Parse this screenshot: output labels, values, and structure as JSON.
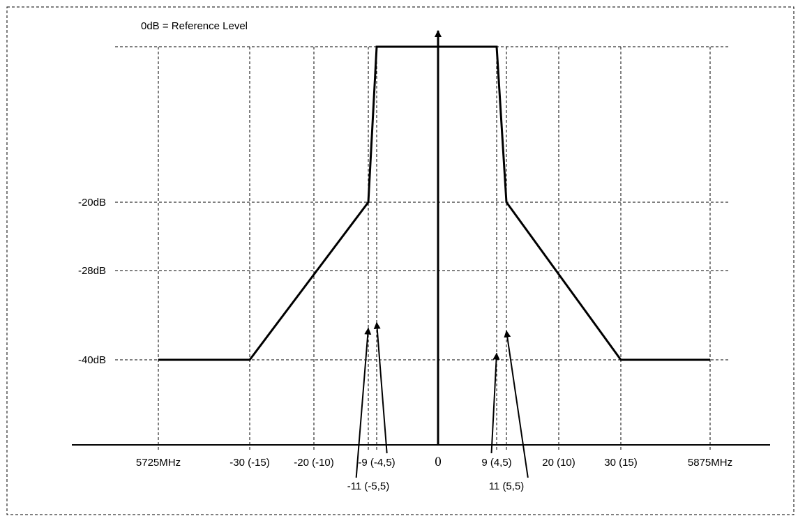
{
  "chart_data": {
    "type": "line",
    "annotation": "0dB = Reference Level",
    "y_ticks": [
      {
        "value": -20,
        "label": "-20dB"
      },
      {
        "value": -28,
        "label": "-28dB"
      },
      {
        "value": -40,
        "label": "-40dB"
      }
    ],
    "x_gridlines": [
      -40,
      -30,
      -20,
      -11,
      -9,
      9,
      11,
      20,
      30,
      40
    ],
    "x_labels": [
      {
        "value": -40,
        "label": "5725MHz",
        "row": 0
      },
      {
        "value": -30,
        "label": "-30 (-15)",
        "row": 0
      },
      {
        "value": -20,
        "label": "-20 (-10)",
        "row": 0
      },
      {
        "value": -9,
        "label": "-9 (-4,5)",
        "row": 0
      },
      {
        "value": 0,
        "label": "0",
        "row": 0
      },
      {
        "value": 9,
        "label": "9 (4,5)",
        "row": 0
      },
      {
        "value": 20,
        "label": "20 (10)",
        "row": 0
      },
      {
        "value": 30,
        "label": "30 (15)",
        "row": 0
      },
      {
        "value": 40,
        "label": "5875MHz",
        "row": 0
      },
      {
        "value": -11,
        "label": "-11 (-5,5)",
        "row": 1
      },
      {
        "value": 11,
        "label": "11 (5,5)",
        "row": 1
      }
    ],
    "mask": [
      [
        -40,
        -40
      ],
      [
        -30,
        -40
      ],
      [
        -11,
        -20
      ],
      [
        -9,
        0
      ],
      [
        9,
        0
      ],
      [
        11,
        -20
      ],
      [
        30,
        -40
      ],
      [
        40,
        -40
      ]
    ],
    "ylim": [
      -55,
      2
    ],
    "grid": true
  }
}
